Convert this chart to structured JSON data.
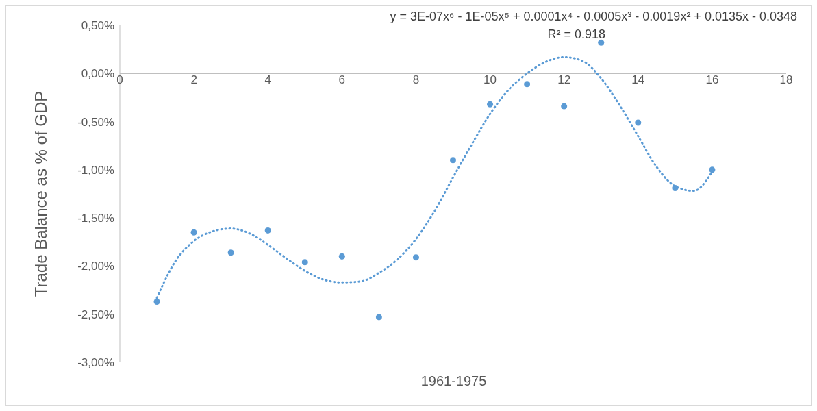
{
  "chart_data": {
    "type": "scatter",
    "ylabel": "Trade Balance as % of GDP",
    "xlabel": "1961-1975",
    "annotations": [
      "y = 3E-07x⁶ - 1E-05x⁵ + 0.0001x⁴ - 0.0005x³ - 0.0019x² + 0.0135x - 0.0348",
      "R² = 0.918"
    ],
    "xlim": [
      0,
      18
    ],
    "xticks": [
      0,
      2,
      4,
      6,
      8,
      10,
      12,
      14,
      16,
      18
    ],
    "ylim": [
      -3,
      0.5
    ],
    "yticks": [
      {
        "value": -3,
        "label": "-3,00%"
      },
      {
        "value": -2.5,
        "label": "-2,50%"
      },
      {
        "value": -2,
        "label": "-2,00%"
      },
      {
        "value": -1.5,
        "label": "-1,50%"
      },
      {
        "value": -1,
        "label": "-1,00%"
      },
      {
        "value": -0.5,
        "label": "-0,50%"
      },
      {
        "value": 0,
        "label": "0,00%"
      },
      {
        "value": 0.5,
        "label": "0,50%"
      }
    ],
    "grid": false,
    "series": [
      {
        "color": "#5b9bd5",
        "marker": "circle",
        "x": [
          1,
          2,
          3,
          4,
          5,
          6,
          7,
          8,
          9,
          10,
          11,
          12,
          13,
          14,
          15,
          16
        ],
        "values": [
          -2.37,
          -1.65,
          -1.86,
          -1.63,
          -1.96,
          -1.9,
          -2.53,
          -1.91,
          -0.9,
          -0.32,
          -0.11,
          -0.34,
          0.32,
          -0.51,
          -1.19,
          -1.0
        ]
      },
      {
        "type": "line",
        "color": "#5b9bd5",
        "marker": "none",
        "line_style": "dotted",
        "x": [
          1,
          1.5,
          2,
          2.5,
          3,
          3.5,
          4,
          4.5,
          5,
          5.5,
          6,
          6.5,
          7,
          7.5,
          8,
          8.5,
          9,
          9.5,
          10,
          10.5,
          11,
          11.5,
          12,
          12.5,
          13,
          13.5,
          14,
          14.5,
          15,
          15.5,
          16
        ],
        "values": [
          -2.33,
          -1.95,
          -1.74,
          -1.64,
          -1.61,
          -1.66,
          -1.78,
          -1.92,
          -2.05,
          -2.14,
          -2.17,
          -2.16,
          -2.07,
          -1.93,
          -1.72,
          -1.43,
          -1.08,
          -0.74,
          -0.42,
          -0.17,
          0.0,
          0.12,
          0.17,
          0.13,
          -0.05,
          -0.33,
          -0.65,
          -0.97,
          -1.17,
          -1.22,
          -1.02
        ]
      }
    ]
  }
}
